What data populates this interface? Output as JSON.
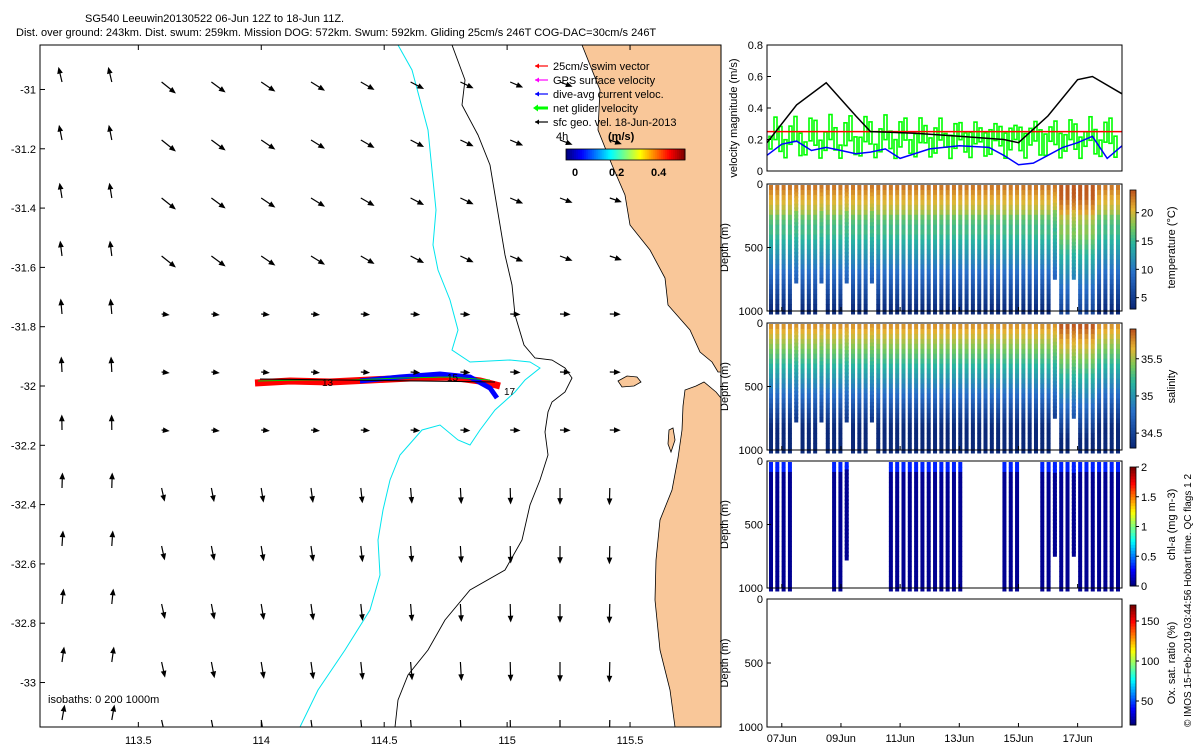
{
  "header": {
    "title_line1": "SG540 Leeuwin20130522 06-Jun 12Z to 18-Jun 11Z.",
    "title_line2": "Dist. over ground: 243km. Dist. swum: 259km. Mission DOG: 572km. Swum: 592km. Gliding 25cm/s 246T COG-DAC=30cm/s 246T"
  },
  "chart_data": [
    {
      "type": "map",
      "name": "current-map",
      "x_ticks": [
        "113.5",
        "114",
        "114.5",
        "115",
        "115.5"
      ],
      "y_ticks": [
        "-31",
        "-31.2",
        "-31.4",
        "-31.6",
        "-31.8",
        "-32",
        "-32.2",
        "-32.4",
        "-32.6",
        "-32.8",
        "-33"
      ],
      "xlim": [
        113.1,
        115.87
      ],
      "ylim": [
        -33.15,
        -30.85
      ],
      "legend": [
        {
          "label": "25cm/s swim vector",
          "color": "#ff0000"
        },
        {
          "label": "GPS surface velocity",
          "color": "#ff00ff"
        },
        {
          "label": "dive-avg current veloc.",
          "color": "#0000ff"
        },
        {
          "label": "net glider velocity",
          "color": "#00ff00"
        },
        {
          "label": "sfc geo. vel. 18-Jun-2013",
          "color": "#000000"
        }
      ],
      "scale_label": "4h",
      "colorbar": {
        "label": "(m/s)",
        "ticks": [
          "0",
          "0.2",
          "0.4"
        ],
        "range": [
          0,
          0.5
        ]
      },
      "track_labels": [
        "13",
        "15",
        "17"
      ],
      "isobaths_label": "isobaths: 0   200   1000m"
    },
    {
      "type": "line",
      "name": "velocity-panel",
      "ylabel": "velocity magnitude (m/s)",
      "yticks": [
        "0",
        "0.2",
        "0.4",
        "0.6",
        "0.8"
      ],
      "ylim": [
        0,
        0.8
      ],
      "xlim": [
        6.5,
        18.5
      ],
      "series": [
        {
          "name": "swim",
          "color": "#ff0000",
          "x": [
            6.5,
            18.5
          ],
          "values": [
            0.25,
            0.25
          ]
        },
        {
          "name": "surface velocity",
          "color": "#000000",
          "x": [
            6.5,
            7.5,
            8.5,
            9.5,
            10.0,
            11.5,
            13.0,
            14.5,
            15.0,
            16.0,
            17.0,
            17.5,
            18.5
          ],
          "values": [
            0.18,
            0.42,
            0.56,
            0.35,
            0.25,
            0.24,
            0.22,
            0.2,
            0.18,
            0.35,
            0.58,
            0.6,
            0.49
          ]
        },
        {
          "name": "dive-avg current",
          "color": "#0000ff",
          "x": [
            6.5,
            7.0,
            7.5,
            8.0,
            8.5,
            9.0,
            9.5,
            10.0,
            10.5,
            11.0,
            12.0,
            13.0,
            14.0,
            14.5,
            15.0,
            15.5,
            16.0,
            16.5,
            17.0,
            17.5,
            18.0,
            18.5
          ],
          "values": [
            0.1,
            0.17,
            0.19,
            0.13,
            0.15,
            0.13,
            0.11,
            0.12,
            0.14,
            0.08,
            0.14,
            0.16,
            0.15,
            0.1,
            0.04,
            0.05,
            0.1,
            0.15,
            0.18,
            0.22,
            0.08,
            0.16
          ]
        }
      ]
    },
    {
      "type": "heatmap",
      "name": "temperature-section",
      "ylabel": "Depth (m)",
      "yticks": [
        "0",
        "500",
        "1000"
      ],
      "ylim": [
        1000,
        0
      ],
      "colorbar": {
        "label": "temperature (°C)",
        "ticks": [
          "5",
          "10",
          "15",
          "20"
        ],
        "range": [
          3,
          24
        ]
      }
    },
    {
      "type": "heatmap",
      "name": "salinity-section",
      "ylabel": "Depth (m)",
      "yticks": [
        "0",
        "500",
        "1000"
      ],
      "ylim": [
        1000,
        0
      ],
      "colorbar": {
        "label": "salinity",
        "ticks": [
          "34.5",
          "35",
          "35.5"
        ],
        "range": [
          34.3,
          35.9
        ]
      }
    },
    {
      "type": "heatmap",
      "name": "chla-section",
      "ylabel": "Depth (m)",
      "yticks": [
        "0",
        "500",
        "1000"
      ],
      "ylim": [
        1000,
        0
      ],
      "colorbar": {
        "label": "chl-a (mg m-3)",
        "ticks": [
          "0",
          "0.5",
          "1",
          "1.5",
          "2"
        ],
        "range": [
          0,
          2
        ]
      }
    },
    {
      "type": "heatmap",
      "name": "oxygen-section",
      "ylabel": "Depth (m)",
      "yticks": [
        "0",
        "500",
        "1000"
      ],
      "ylim": [
        1000,
        0
      ],
      "xticks": [
        "07Jun",
        "09Jun",
        "11Jun",
        "13Jun",
        "15Jun",
        "17Jun"
      ],
      "colorbar": {
        "label": "Ox. sat. ratio (%)",
        "ticks": [
          "50",
          "100",
          "150"
        ],
        "range": [
          20,
          170
        ]
      }
    }
  ],
  "footer": {
    "side_note": "© IMOS 15-Feb-2019 03:44:56 Hobart time. QC flags 1  2"
  }
}
